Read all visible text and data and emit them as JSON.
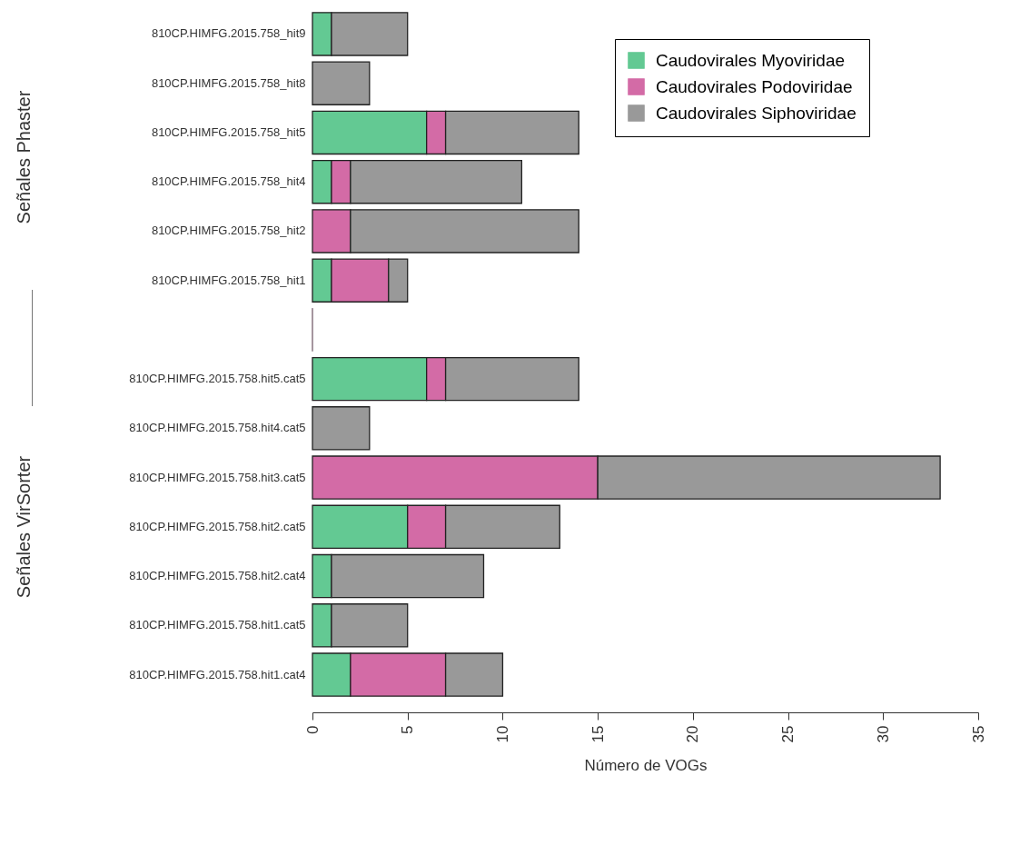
{
  "chart_data": {
    "type": "bar",
    "orientation": "horizontal",
    "stacked": true,
    "xlabel": "Número de VOGs",
    "categories": [
      "810CP.HIMFG.2015.758_hit9",
      "810CP.HIMFG.2015.758_hit8",
      "810CP.HIMFG.2015.758_hit5",
      "810CP.HIMFG.2015.758_hit4",
      "810CP.HIMFG.2015.758_hit2",
      "810CP.HIMFG.2015.758_hit1",
      null,
      "810CP.HIMFG.2015.758.hit5.cat5",
      "810CP.HIMFG.2015.758.hit4.cat5",
      "810CP.HIMFG.2015.758.hit3.cat5",
      "810CP.HIMFG.2015.758.hit2.cat5",
      "810CP.HIMFG.2015.758.hit2.cat4",
      "810CP.HIMFG.2015.758.hit1.cat5",
      "810CP.HIMFG.2015.758.hit1.cat4"
    ],
    "series": [
      {
        "name": "Caudovirales Myoviridae",
        "color": "#63c993",
        "values": [
          1,
          0,
          6,
          1,
          0,
          1,
          0,
          6,
          0,
          0,
          5,
          1,
          1,
          2
        ]
      },
      {
        "name": "Caudovirales Podoviridae",
        "color": "#d36ba6",
        "values": [
          0,
          0,
          1,
          1,
          2,
          3,
          0,
          1,
          0,
          15,
          2,
          0,
          0,
          5
        ]
      },
      {
        "name": "Caudovirales Siphoviridae",
        "color": "#999999",
        "values": [
          4,
          3,
          7,
          9,
          12,
          1,
          0,
          7,
          3,
          18,
          6,
          8,
          4,
          3
        ]
      }
    ],
    "xlim": [
      0,
      35
    ],
    "xticks": [
      0,
      5,
      10,
      15,
      20,
      25,
      30,
      35
    ],
    "grid": false,
    "legend": "top right",
    "annotations": [
      "Señales Phaster",
      "Señales VirSorter"
    ]
  }
}
